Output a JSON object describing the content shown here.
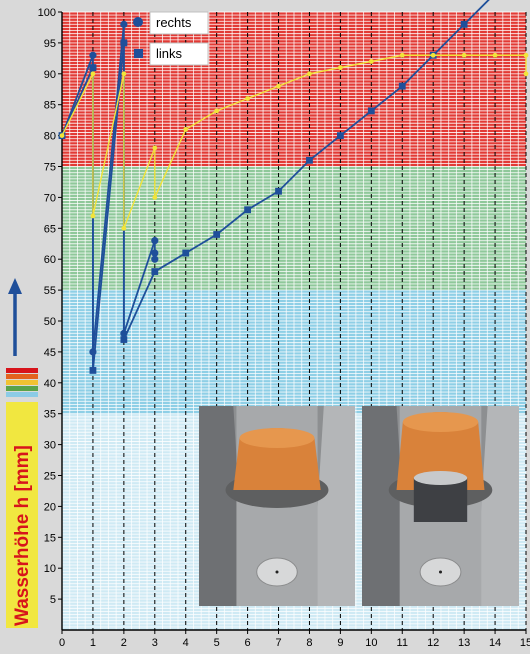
{
  "chart_data": {
    "type": "line",
    "ylabel": "Wasserhöhe h [mm]",
    "xlabel": "",
    "xlim": [
      0,
      15
    ],
    "ylim": [
      0,
      100
    ],
    "x_ticks": [
      0,
      1,
      2,
      3,
      4,
      5,
      6,
      7,
      8,
      9,
      10,
      11,
      12,
      13,
      14,
      15
    ],
    "y_ticks": [
      5,
      10,
      15,
      20,
      25,
      30,
      35,
      40,
      45,
      50,
      55,
      60,
      65,
      70,
      75,
      80,
      85,
      90,
      95,
      100
    ],
    "bands": [
      {
        "from": 0,
        "to": 35,
        "color": "#cfeaf4"
      },
      {
        "from": 35,
        "to": 55,
        "color": "#8ecfe6"
      },
      {
        "from": 55,
        "to": 75,
        "color": "#8fc89a"
      },
      {
        "from": 75,
        "to": 100,
        "color": "#e23a35"
      }
    ],
    "legend_position": "top-center",
    "series": [
      {
        "name": "rechts",
        "marker": "circle",
        "color": "#1f4f9a",
        "points": [
          [
            0,
            80
          ],
          [
            1,
            93
          ],
          [
            1,
            91
          ],
          [
            1,
            45
          ],
          [
            2,
            98
          ],
          [
            2,
            95
          ],
          [
            2,
            48
          ],
          [
            3,
            63
          ],
          [
            3,
            61
          ],
          [
            3,
            60
          ]
        ]
      },
      {
        "name": "links",
        "marker": "square",
        "color": "#1f4f9a",
        "points": [
          [
            0,
            80
          ],
          [
            1,
            91
          ],
          [
            1,
            42
          ],
          [
            2,
            95
          ],
          [
            2,
            47
          ],
          [
            3,
            58
          ],
          [
            4,
            61
          ],
          [
            5,
            64
          ],
          [
            6,
            68
          ],
          [
            7,
            71
          ],
          [
            8,
            76
          ],
          [
            9,
            80
          ],
          [
            10,
            84
          ],
          [
            11,
            88
          ],
          [
            12,
            93
          ],
          [
            13,
            98
          ],
          [
            14,
            103
          ]
        ]
      },
      {
        "name": "",
        "marker": "dot",
        "color": "#f2e43a",
        "points": [
          [
            0,
            80
          ],
          [
            1,
            90
          ],
          [
            1,
            67
          ],
          [
            2,
            90
          ],
          [
            2,
            65
          ],
          [
            3,
            78
          ],
          [
            3,
            70
          ],
          [
            4,
            81
          ],
          [
            5,
            84
          ],
          [
            6,
            86
          ],
          [
            7,
            88
          ],
          [
            8,
            90
          ],
          [
            9,
            91
          ],
          [
            10,
            92
          ],
          [
            11,
            93
          ],
          [
            12,
            93
          ],
          [
            13,
            93
          ],
          [
            14,
            93
          ],
          [
            15,
            93
          ],
          [
            15,
            90
          ]
        ]
      }
    ]
  },
  "photos": [
    {
      "subject": "orange-drain-cap-closed"
    },
    {
      "subject": "orange-drain-cap-with-sleeve"
    }
  ]
}
